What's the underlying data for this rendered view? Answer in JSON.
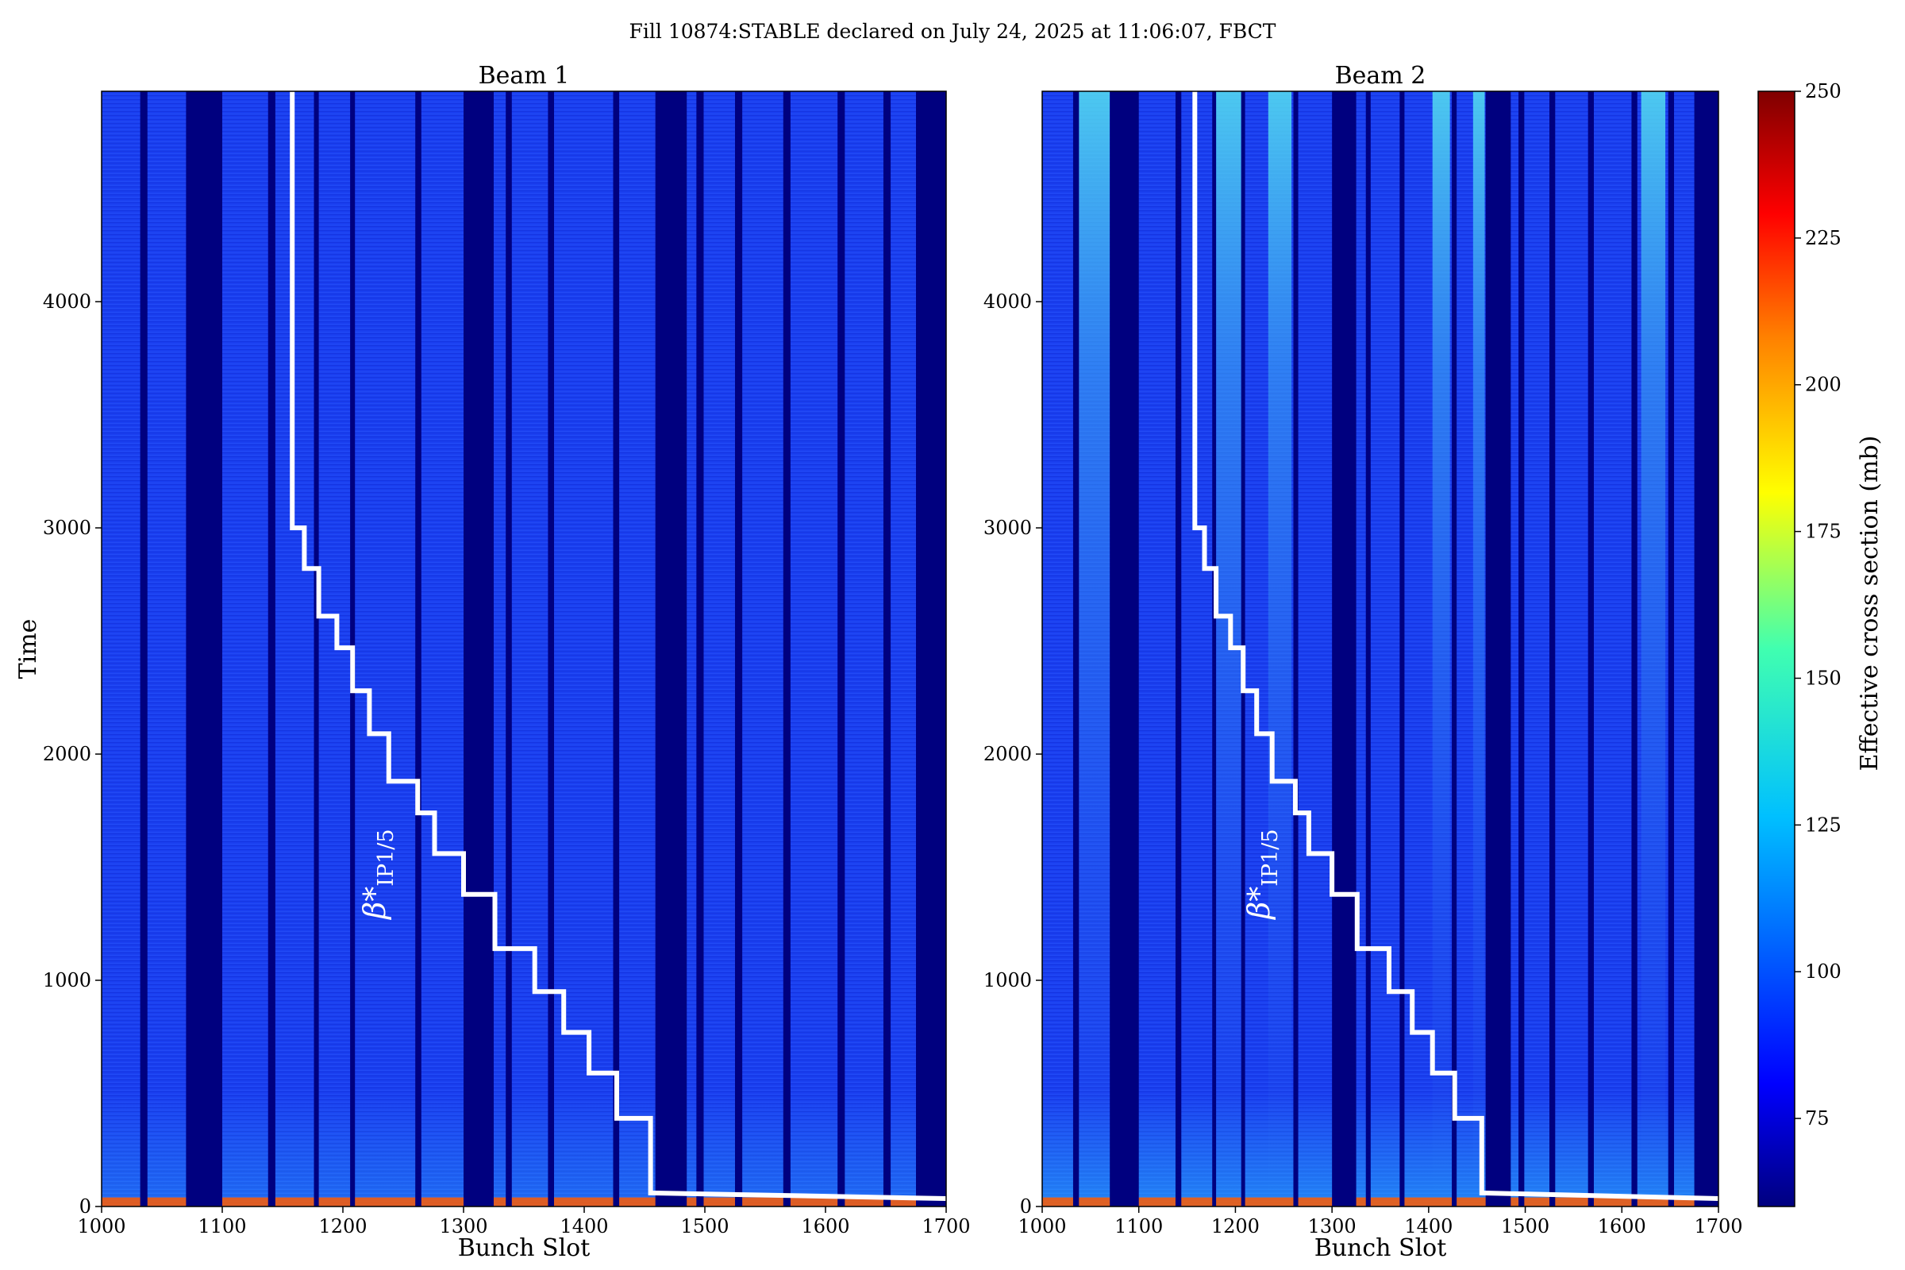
{
  "figure": {
    "suptitle": "Fill 10874:STABLE declared on July 24, 2025 at 11:06:07, FBCT"
  },
  "chart_data": [
    {
      "type": "heatmap",
      "title": "Beam 1",
      "xlabel": "Bunch Slot",
      "ylabel": "Time",
      "xlim": [
        1000,
        1700
      ],
      "ylim": [
        0,
        4930
      ],
      "xticks": [
        "1000",
        "1100",
        "1200",
        "1300",
        "1400",
        "1500",
        "1600",
        "1700"
      ],
      "yticks": [
        "0",
        "1000",
        "2000",
        "3000",
        "4000"
      ],
      "empty_slot_ranges": [
        [
          1032,
          1038
        ],
        [
          1070,
          1100
        ],
        [
          1138,
          1144
        ],
        [
          1176,
          1180
        ],
        [
          1206,
          1210
        ],
        [
          1260,
          1265
        ],
        [
          1300,
          1325
        ],
        [
          1335,
          1340
        ],
        [
          1370,
          1375
        ],
        [
          1424,
          1429
        ],
        [
          1459,
          1485
        ],
        [
          1493,
          1499
        ],
        [
          1525,
          1531
        ],
        [
          1565,
          1571
        ],
        [
          1610,
          1616
        ],
        [
          1648,
          1654
        ],
        [
          1675,
          1710
        ]
      ],
      "annotation": {
        "text": "β*",
        "subscript": "IP1/5",
        "x": 1235,
        "y": 1470
      },
      "beta_star_line": {
        "x": [
          1158,
          1158,
          1168,
          1168,
          1180,
          1180,
          1195,
          1195,
          1208,
          1208,
          1222,
          1222,
          1238,
          1238,
          1262,
          1262,
          1276,
          1276,
          1300,
          1300,
          1326,
          1326,
          1359,
          1359,
          1383,
          1383,
          1404,
          1404,
          1427,
          1427,
          1455,
          1455,
          1700
        ],
        "y": [
          4930,
          3000,
          3000,
          2820,
          2820,
          2610,
          2610,
          2470,
          2470,
          2280,
          2280,
          2090,
          2090,
          1880,
          1880,
          1740,
          1740,
          1560,
          1560,
          1380,
          1380,
          1140,
          1140,
          950,
          950,
          770,
          770,
          590,
          590,
          390,
          390,
          60,
          35
        ]
      }
    },
    {
      "type": "heatmap",
      "title": "Beam 2",
      "xlabel": "Bunch Slot",
      "ylabel": "",
      "xlim": [
        1000,
        1700
      ],
      "ylim": [
        0,
        4930
      ],
      "xticks": [
        "1000",
        "1100",
        "1200",
        "1300",
        "1400",
        "1500",
        "1600",
        "1700"
      ],
      "yticks": [
        "0",
        "1000",
        "2000",
        "3000",
        "4000"
      ],
      "empty_slot_ranges": [
        [
          1032,
          1038
        ],
        [
          1070,
          1100
        ],
        [
          1138,
          1144
        ],
        [
          1176,
          1180
        ],
        [
          1206,
          1210
        ],
        [
          1260,
          1265
        ],
        [
          1300,
          1325
        ],
        [
          1335,
          1340
        ],
        [
          1370,
          1375
        ],
        [
          1424,
          1429
        ],
        [
          1459,
          1485
        ],
        [
          1493,
          1499
        ],
        [
          1525,
          1531
        ],
        [
          1565,
          1571
        ],
        [
          1610,
          1616
        ],
        [
          1648,
          1654
        ],
        [
          1675,
          1710
        ]
      ],
      "hot_slot_ranges": [
        [
          1038,
          1070
        ],
        [
          1180,
          1206
        ],
        [
          1234,
          1258
        ],
        [
          1404,
          1422
        ],
        [
          1446,
          1458
        ],
        [
          1620,
          1645
        ]
      ],
      "annotation": {
        "text": "β*",
        "subscript": "IP1/5",
        "x": 1235,
        "y": 1470
      },
      "beta_star_line": {
        "x": [
          1158,
          1158,
          1168,
          1168,
          1180,
          1180,
          1195,
          1195,
          1208,
          1208,
          1222,
          1222,
          1238,
          1238,
          1262,
          1262,
          1276,
          1276,
          1300,
          1300,
          1326,
          1326,
          1359,
          1359,
          1383,
          1383,
          1404,
          1404,
          1427,
          1427,
          1455,
          1455,
          1700
        ],
        "y": [
          4930,
          3000,
          3000,
          2820,
          2820,
          2610,
          2610,
          2470,
          2470,
          2280,
          2280,
          2090,
          2090,
          1880,
          1880,
          1740,
          1740,
          1560,
          1560,
          1380,
          1380,
          1140,
          1140,
          950,
          950,
          770,
          770,
          590,
          590,
          390,
          390,
          60,
          35
        ]
      }
    }
  ],
  "colorbar": {
    "label": "Effective cross section (mb)",
    "range": [
      60,
      250
    ],
    "ticks": [
      "75",
      "100",
      "125",
      "150",
      "175",
      "200",
      "225",
      "250"
    ],
    "colormap": "jet",
    "colors": [
      "#00007f",
      "#0000ff",
      "#007fff",
      "#00ffff",
      "#7fff7f",
      "#ffff00",
      "#ff7f00",
      "#ff0000",
      "#7f0000"
    ]
  },
  "colors": {
    "empty_slot": "#00007f",
    "filled_slot": "#1a3ff0",
    "hot_slot": "#3aa6f0",
    "burst": "#ff5a00",
    "beta_line": "#ffffff"
  }
}
